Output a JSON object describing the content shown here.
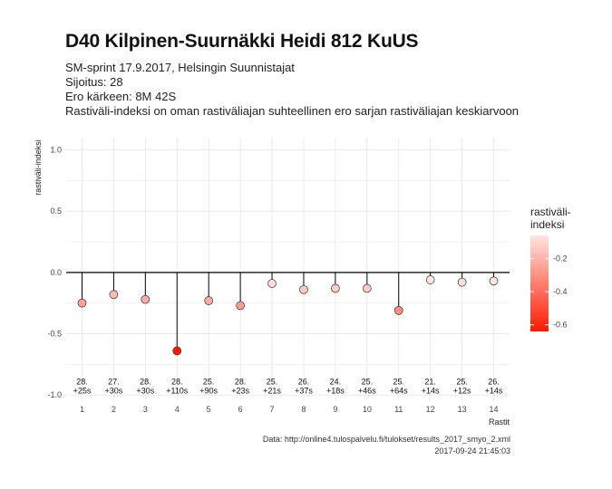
{
  "header": {
    "title": "D40 Kilpinen-Suurnäkki Heidi 812 KuUS",
    "subtitle_lines": [
      "SM-sprint 17.9.2017, Helsingin Suunnistajat",
      "Sijoitus: 28",
      "Ero kärkeen: 8M 42S",
      "Rastiväli-indeksi on oman rastiväliajan suhteellinen ero sarjan rastiväliajan keskiarvoon"
    ]
  },
  "caption": {
    "source": "Data: http://online4.tulospalvelu.fi/tulokset/results_2017_smyo_2.xml",
    "timestamp": "2017-09-24 21:45:03"
  },
  "colors": {
    "low": "#ff1a00",
    "high": "#ffe5e0",
    "grid": "#e6e6e6",
    "stem": "#000000"
  },
  "chart_data": {
    "type": "scatter",
    "style": "lollipop",
    "xlabel": "Rastit",
    "ylabel": "rastiväli-indeksi",
    "xlim": [
      0.5,
      14.5
    ],
    "ylim": [
      -1.05,
      1.1
    ],
    "x_ticks": [
      1,
      2,
      3,
      4,
      5,
      6,
      7,
      8,
      9,
      10,
      11,
      12,
      13,
      14
    ],
    "y_ticks": [
      {
        "value": 1.0,
        "label": "1.0"
      },
      {
        "value": 0.5,
        "label": "0.5"
      },
      {
        "value": 0.0,
        "label": "0.0"
      },
      {
        "value": -0.5,
        "label": "-0.5"
      },
      {
        "value": -1.0,
        "label": "-1.0"
      }
    ],
    "baseline": 0,
    "grid": true,
    "x": [
      1,
      2,
      3,
      4,
      5,
      6,
      7,
      8,
      9,
      10,
      11,
      12,
      13,
      14
    ],
    "values": [
      -0.25,
      -0.18,
      -0.22,
      -0.64,
      -0.23,
      -0.27,
      -0.09,
      -0.14,
      -0.13,
      -0.13,
      -0.31,
      -0.06,
      -0.08,
      -0.07
    ],
    "labels": [
      [
        "28.",
        "+25s"
      ],
      [
        "27.",
        "+30s"
      ],
      [
        "28.",
        "+30s"
      ],
      [
        "28.",
        "+110s"
      ],
      [
        "25.",
        "+90s"
      ],
      [
        "28.",
        "+23s"
      ],
      [
        "25.",
        "+21s"
      ],
      [
        "26.",
        "+37s"
      ],
      [
        "24.",
        "+18s"
      ],
      [
        "25.",
        "+46s"
      ],
      [
        "25.",
        "+64s"
      ],
      [
        "21.",
        "+14s"
      ],
      [
        "25.",
        "+12s"
      ],
      [
        "26.",
        "+14s"
      ]
    ],
    "label_y": -0.92,
    "legend": {
      "title_lines": [
        "rastiväli-",
        "indeksi"
      ],
      "placement": "right",
      "range": [
        -0.64,
        -0.06
      ],
      "ticks": [
        {
          "value": -0.2,
          "label": "-0.2"
        },
        {
          "value": -0.4,
          "label": "-0.4"
        },
        {
          "value": -0.6,
          "label": "-0.6"
        }
      ]
    }
  }
}
